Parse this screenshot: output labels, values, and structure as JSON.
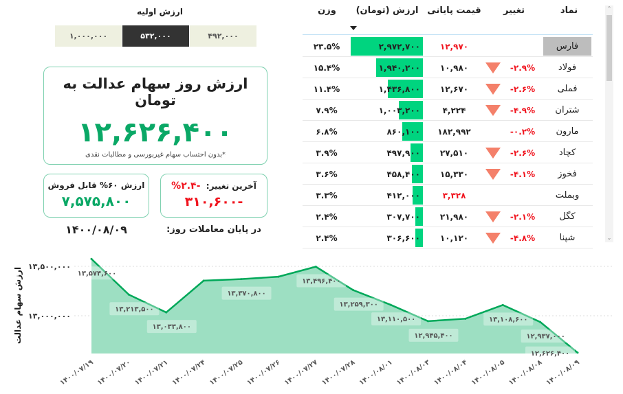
{
  "initial_value": {
    "title": "ارزش اولیه",
    "options": [
      "۱,۰۰۰,۰۰۰",
      "۵۳۲,۰۰۰",
      "۴۹۲,۰۰۰"
    ],
    "selected": "۵۳۲,۰۰۰"
  },
  "main_card": {
    "title": "ارزش روز سهام عدالت به تومان",
    "value": "۱۲,۶۲۶,۴۰۰",
    "note": "*بدون احتساب سهام غیربورسی و مطالبات نقدی"
  },
  "sellable_card": {
    "title": "ارزش ۶۰% قابل فروش",
    "value": "۷,۵۷۵,۸۰۰"
  },
  "change_card": {
    "label": "آخرین تغییر:",
    "percent": "-۲.۴%",
    "value": "-۳۱۰,۶۰۰"
  },
  "date_label": "در پایان معاملات روز:",
  "date": "۱۴۰۰/۰۸/۰۹",
  "table": {
    "headers": {
      "symbol": "نماد",
      "change": "تغییر",
      "close": "قیمت پایانی",
      "value": "ارزش (تومان)",
      "weight": "وزن"
    },
    "sorted_by": "value",
    "rows": [
      {
        "symbol": "فارس",
        "change": "",
        "down": false,
        "close": "۱۲,۹۷۰",
        "close_red": true,
        "value": "۲,۹۷۲,۷۰۰",
        "value_num": 2972700,
        "weight": "۲۳.۵%",
        "selected": true
      },
      {
        "symbol": "فولاد",
        "change": "-۲.۹%",
        "down": true,
        "close": "۱۰,۹۸۰",
        "value": "۱,۹۴۰,۲۰۰",
        "value_num": 1940200,
        "weight": "۱۵.۴%"
      },
      {
        "symbol": "فملی",
        "change": "-۲.۶%",
        "down": true,
        "close": "۱۲,۶۷۰",
        "value": "۱,۴۳۶,۸۰۰",
        "value_num": 1436800,
        "weight": "۱۱.۴%"
      },
      {
        "symbol": "شتران",
        "change": "-۴.۹%",
        "down": true,
        "close": "۴,۲۲۴",
        "value": "۱,۰۰۳,۲۰۰",
        "value_num": 1003200,
        "weight": "۷.۹%"
      },
      {
        "symbol": "مارون",
        "change": "-۰.۲%",
        "down": false,
        "close": "۱۸۲,۹۹۲",
        "value": "۸۶۰,۱۰۰",
        "value_num": 860100,
        "weight": "۶.۸%"
      },
      {
        "symbol": "کچاد",
        "change": "-۲.۶%",
        "down": true,
        "close": "۲۷,۵۱۰",
        "value": "۴۹۷,۹۰۰",
        "value_num": 497900,
        "weight": "۳.۹%"
      },
      {
        "symbol": "فخوز",
        "change": "-۴.۱%",
        "down": true,
        "close": "۱۵,۳۳۰",
        "value": "۴۵۸,۴۰۰",
        "value_num": 458400,
        "weight": "۳.۶%"
      },
      {
        "symbol": "وبملت",
        "change": "",
        "down": false,
        "close": "۳,۳۲۸",
        "close_red": true,
        "value": "۴۱۲,۰۰۰",
        "value_num": 412000,
        "weight": "۳.۳%"
      },
      {
        "symbol": "کگل",
        "change": "-۲.۱%",
        "down": true,
        "close": "۲۱,۹۸۰",
        "value": "۳۰۷,۷۰۰",
        "value_num": 307700,
        "weight": "۲.۴%"
      },
      {
        "symbol": "شپنا",
        "change": "-۴.۸%",
        "down": true,
        "close": "۱۰,۱۲۰",
        "value": "۳۰۶,۶۰۰",
        "value_num": 306600,
        "weight": "۲.۴%"
      }
    ]
  },
  "chart_data": {
    "type": "area",
    "ylabel": "ارزش سهام عدالت",
    "ylim": [
      12600000,
      13600000
    ],
    "yticks": [
      {
        "v": 13500000,
        "label": "۱۳,۵۰۰,۰۰۰"
      },
      {
        "v": 13000000,
        "label": "۱۳,۰۰۰,۰۰۰"
      }
    ],
    "grid": true,
    "colors": {
      "line": "#00a859",
      "fill": "#9ddfc2"
    },
    "x": [
      "۱۴۰۰/۰۷/۱۹",
      "۱۴۰۰/۰۷/۲۰",
      "۱۴۰۰/۰۷/۲۱",
      "۱۴۰۰/۰۷/۲۴",
      "۱۴۰۰/۰۷/۲۵",
      "۱۴۰۰/۰۷/۲۶",
      "۱۴۰۰/۰۷/۲۷",
      "۱۴۰۰/۰۷/۲۸",
      "۱۴۰۰/۰۸/۰۱",
      "۱۴۰۰/۰۸/۰۳",
      "۱۴۰۰/۰۸/۰۴",
      "۱۴۰۰/۰۸/۰۵",
      "۱۴۰۰/۰۸/۰۸",
      "۱۴۰۰/۰۸/۰۹"
    ],
    "values": [
      13574600,
      13213500,
      13033800,
      13355000,
      13370800,
      13395000,
      13496400,
      13259300,
      13110500,
      12945400,
      12970000,
      13108600,
      12937000,
      12626400
    ],
    "labels": [
      "۱۳,۵۷۴,۶۰۰",
      "۱۳,۲۱۳,۵۰۰",
      "۱۳,۰۳۳,۸۰۰",
      null,
      "۱۳,۳۷۰,۸۰۰",
      null,
      "۱۳,۴۹۶,۴۰۰",
      "۱۳,۲۵۹,۳۰۰",
      "۱۳,۱۱۰,۵۰۰",
      "۱۲,۹۴۵,۴۰۰",
      null,
      "۱۳,۱۰۸,۶۰۰",
      "۱۲,۹۳۷,۰۰۰",
      "۱۲,۶۲۶,۴۰۰"
    ]
  }
}
